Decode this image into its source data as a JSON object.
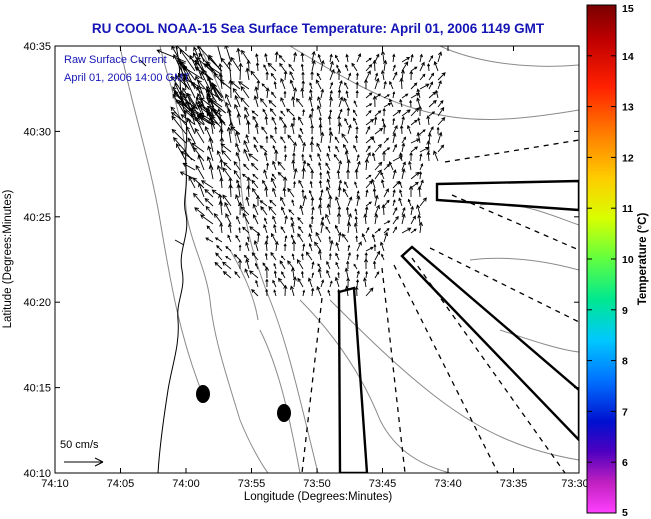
{
  "chart_data": {
    "type": "quiver-map",
    "title": "RU COOL  NOAA-15  Sea Surface Temperature:  April 01, 2006 1149 GMT",
    "xlabel": "Longitude (Degrees:Minutes)",
    "ylabel": "Latitude (Degrees:Minutes)",
    "x_ticks": [
      "74:10",
      "74:05",
      "74:00",
      "73:55",
      "73:50",
      "73:45",
      "73:40",
      "73:35",
      "73:30"
    ],
    "y_ticks": [
      "40:35",
      "40:30",
      "40:25",
      "40:20",
      "40:15",
      "40:10"
    ],
    "xlim_minutes_west": [
      4450,
      4410
    ],
    "ylim_minutes_north": [
      2410,
      2435
    ],
    "legend": {
      "line1": "Raw Surface Current",
      "line2": "April 01, 2006 14:00 GMT"
    },
    "scale_label": "50 cm/s",
    "colorbar": {
      "label": "Temperature (°C)",
      "ticks": [
        "15",
        "14",
        "13",
        "12",
        "11",
        "10",
        "9",
        "8",
        "7",
        "6",
        "5"
      ],
      "range": [
        5,
        15
      ]
    },
    "grid": false,
    "colors": {
      "title": "#1515b5",
      "coast": "#000000",
      "bathymetry": "#8a8a8a",
      "vectors": "#000000"
    }
  }
}
